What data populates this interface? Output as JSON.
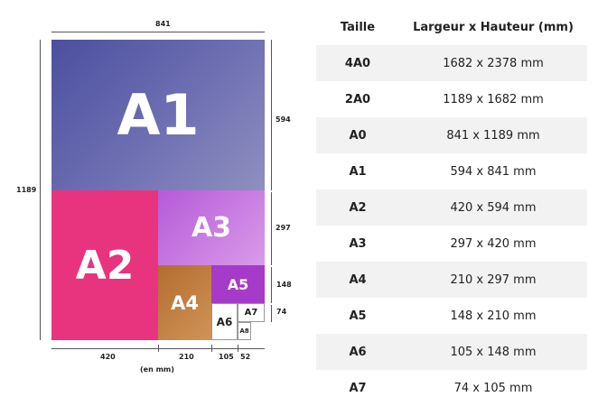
{
  "diagram": {
    "labels": {
      "a1": "A1",
      "a2": "A2",
      "a3": "A3",
      "a4": "A4",
      "a5": "A5",
      "a6": "A6",
      "a7": "A7",
      "a8": "A8"
    },
    "dimensions": {
      "top_width": "841",
      "left_height": "1189",
      "right_594": "594",
      "right_297": "297",
      "right_148": "148",
      "right_74": "74",
      "bottom_420": "420",
      "bottom_210": "210",
      "bottom_105": "105",
      "bottom_52": "52",
      "unit": "(en mm)"
    },
    "colors": {
      "a1": "#5a5ea6",
      "a2": "#e8347e",
      "a3": "#c36be0",
      "a4": "#c07a3a",
      "a5": "#a53bc8"
    }
  },
  "table": {
    "headers": [
      "Taille",
      "Largeur x Hauteur (mm)"
    ],
    "rows": [
      {
        "size": "4A0",
        "dims": "1682 x 2378 mm"
      },
      {
        "size": "2A0",
        "dims": "1189 x 1682 mm"
      },
      {
        "size": "A0",
        "dims": "841 x 1189 mm"
      },
      {
        "size": "A1",
        "dims": "594 x 841 mm"
      },
      {
        "size": "A2",
        "dims": "420 x 594 mm"
      },
      {
        "size": "A3",
        "dims": "297 x 420 mm"
      },
      {
        "size": "A4",
        "dims": "210 x 297 mm"
      },
      {
        "size": "A5",
        "dims": "148 x 210 mm"
      },
      {
        "size": "A6",
        "dims": "105 x 148 mm"
      },
      {
        "size": "A7",
        "dims": "74 x 105 mm"
      }
    ]
  }
}
